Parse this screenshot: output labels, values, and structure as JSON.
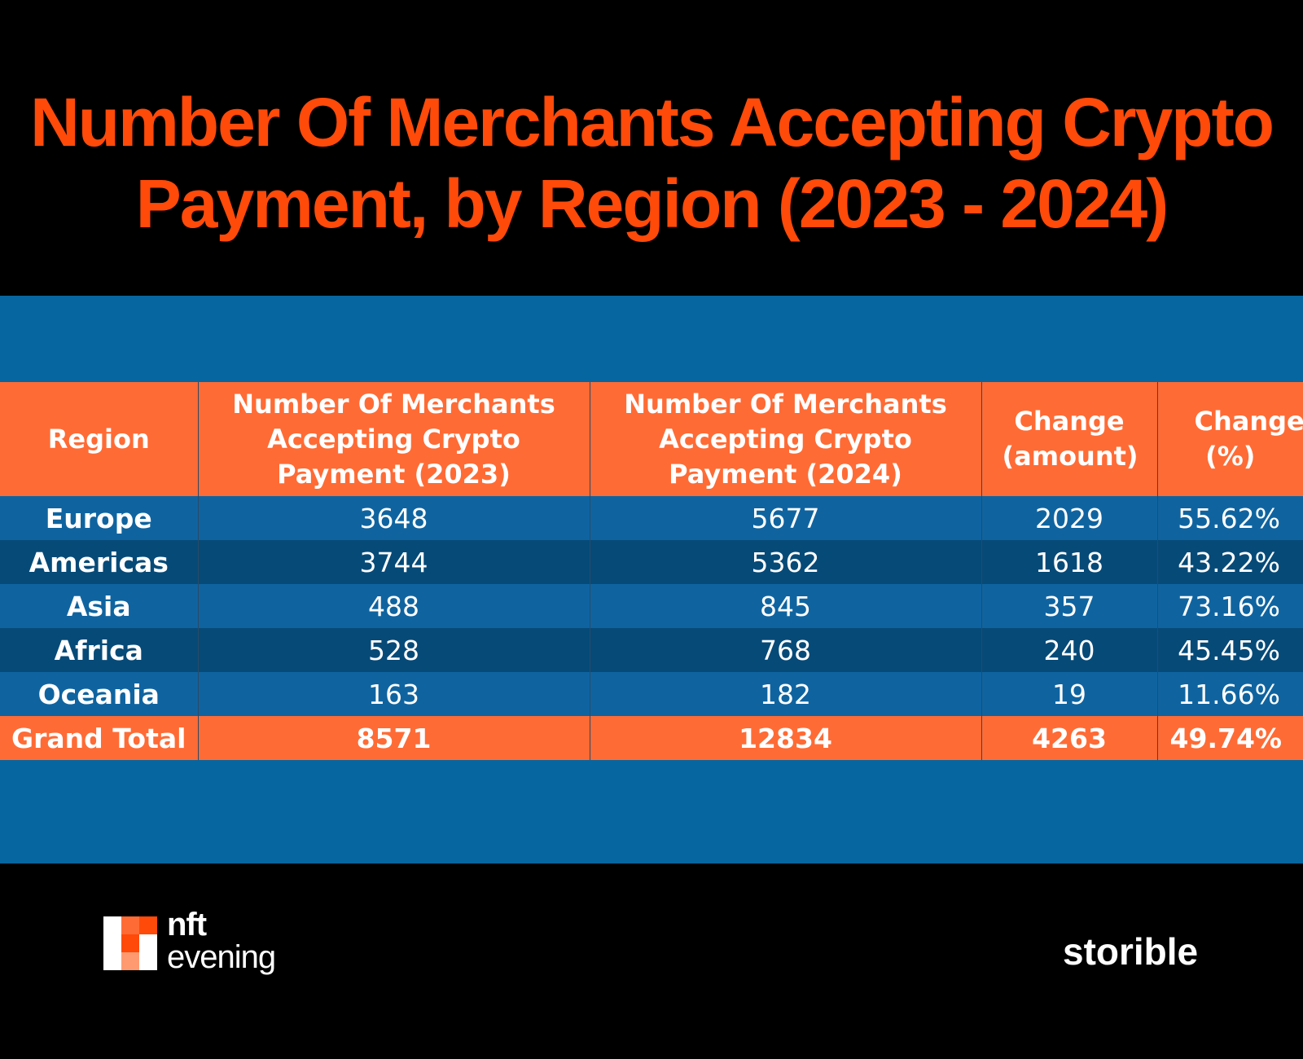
{
  "title_lines": [
    "Number Of Merchants Accepting Crypto",
    "Payment, by Region (2023 - 2024)"
  ],
  "colors": {
    "title": "#ff4a0a",
    "header_bg": "#ff6b35",
    "row_light": "#0f64a0",
    "row_dark": "#064a78",
    "panel": "#06669f",
    "background": "#000000"
  },
  "chart_data": {
    "type": "table",
    "title": "Number Of Merchants Accepting Crypto Payment, by Region (2023 - 2024)",
    "columns": [
      "Region",
      "Number Of Merchants Accepting Crypto Payment (2023)",
      "Number Of Merchants Accepting Crypto Payment (2024)",
      "Change (amount)",
      "Change (%)"
    ],
    "rows": [
      [
        "Europe",
        "3648",
        "5677",
        "2029",
        "55.62%"
      ],
      [
        "Americas",
        "3744",
        "5362",
        "1618",
        "43.22%"
      ],
      [
        "Asia",
        "488",
        "845",
        "357",
        "73.16%"
      ],
      [
        "Africa",
        "528",
        "768",
        "240",
        "45.45%"
      ],
      [
        "Oceania",
        "163",
        "182",
        "19",
        "11.66%"
      ]
    ],
    "total": [
      "Grand Total",
      "8571",
      "12834",
      "4263",
      "49.74%"
    ]
  },
  "logos": {
    "left_line1": "nft",
    "left_line2": "evening",
    "right": "storible"
  }
}
